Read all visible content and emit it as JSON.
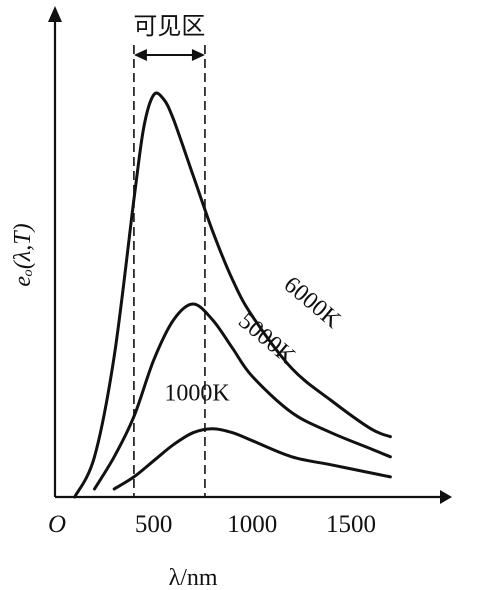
{
  "chart_data": {
    "type": "line",
    "title": "",
    "xlabel": "λ/nm",
    "ylabel": "eₒ(λ,T)",
    "origin_label": "O",
    "xlim": [
      0,
      1850
    ],
    "ylim": [
      0,
      1.0
    ],
    "x_ticks": [
      500,
      1000,
      1500
    ],
    "visible_band": {
      "label": "可见区",
      "x_range": [
        400,
        760
      ]
    },
    "series": [
      {
        "name": "6000K",
        "x": [
          100,
          200,
          300,
          400,
          450,
          500,
          550,
          600,
          700,
          800,
          900,
          1000,
          1200,
          1400,
          1600,
          1700
        ],
        "y": [
          0.0,
          0.1,
          0.35,
          0.74,
          0.92,
          1.0,
          0.99,
          0.94,
          0.8,
          0.66,
          0.54,
          0.45,
          0.32,
          0.24,
          0.17,
          0.15
        ]
      },
      {
        "name": "5000K",
        "x": [
          200,
          300,
          400,
          500,
          600,
          700,
          800,
          900,
          1000,
          1200,
          1400,
          1600,
          1700
        ],
        "y": [
          0.02,
          0.1,
          0.2,
          0.34,
          0.44,
          0.48,
          0.44,
          0.37,
          0.3,
          0.21,
          0.16,
          0.12,
          0.1
        ]
      },
      {
        "name": "1000K",
        "x": [
          300,
          400,
          500,
          600,
          700,
          800,
          900,
          1000,
          1200,
          1400,
          1600,
          1700
        ],
        "y": [
          0.02,
          0.05,
          0.09,
          0.13,
          0.16,
          0.17,
          0.16,
          0.14,
          0.1,
          0.08,
          0.06,
          0.05
        ]
      }
    ]
  }
}
